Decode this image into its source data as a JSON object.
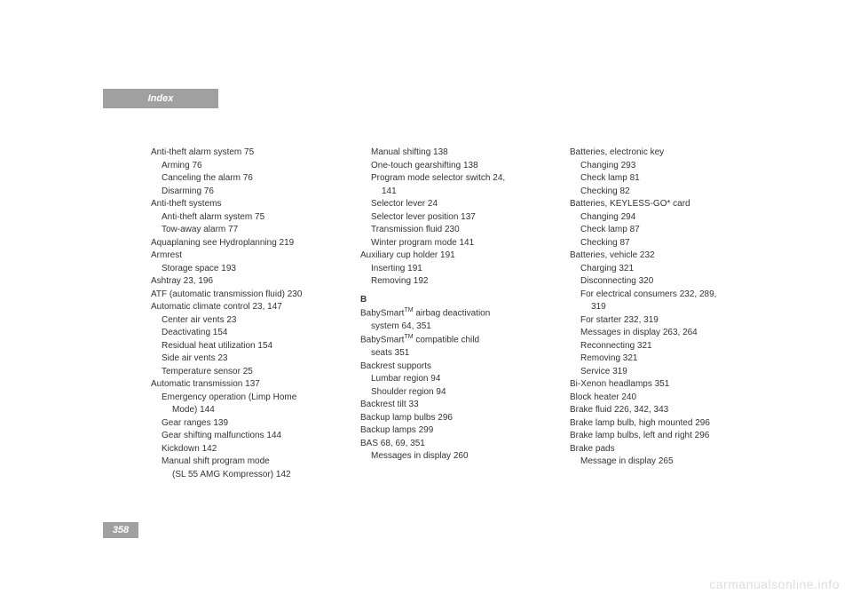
{
  "header": {
    "tab": "Index"
  },
  "page_number": "358",
  "watermark": "carmanualsonline.info",
  "col1": [
    {
      "t": "Anti-theft alarm system   75",
      "i": 0
    },
    {
      "t": "Arming   76",
      "i": 1
    },
    {
      "t": "Canceling the alarm   76",
      "i": 1
    },
    {
      "t": "Disarming   76",
      "i": 1
    },
    {
      "t": "Anti-theft systems",
      "i": 0
    },
    {
      "t": "Anti-theft alarm system   75",
      "i": 1
    },
    {
      "t": "Tow-away alarm   77",
      "i": 1
    },
    {
      "t": "Aquaplaning see Hydroplanning   219",
      "i": 0
    },
    {
      "t": "Armrest",
      "i": 0
    },
    {
      "t": "Storage space   193",
      "i": 1
    },
    {
      "t": "Ashtray   23, 196",
      "i": 0
    },
    {
      "t": "ATF (automatic transmission fluid)   230",
      "i": 0
    },
    {
      "t": "Automatic climate control   23, 147",
      "i": 0
    },
    {
      "t": "Center air vents   23",
      "i": 1
    },
    {
      "t": "Deactivating   154",
      "i": 1
    },
    {
      "t": "Residual heat utilization   154",
      "i": 1
    },
    {
      "t": "Side air vents   23",
      "i": 1
    },
    {
      "t": "Temperature sensor   25",
      "i": 1
    },
    {
      "t": "Automatic transmission   137",
      "i": 0
    },
    {
      "t": "Emergency operation (Limp Home",
      "i": 1
    },
    {
      "t": "Mode)   144",
      "i": 2
    },
    {
      "t": "Gear ranges   139",
      "i": 1
    },
    {
      "t": "Gear shifting malfunctions   144",
      "i": 1
    },
    {
      "t": "Kickdown   142",
      "i": 1
    },
    {
      "t": "Manual shift program mode",
      "i": 1
    },
    {
      "t": "(SL 55 AMG Kompressor)   142",
      "i": 2
    }
  ],
  "col2_top": [
    {
      "t": "Manual shifting   138",
      "i": 1
    },
    {
      "t": "One-touch gearshifting   138",
      "i": 1
    },
    {
      "t": "Program mode selector switch   24,",
      "i": 1
    },
    {
      "t": "141",
      "i": 2
    },
    {
      "t": "Selector lever   24",
      "i": 1
    },
    {
      "t": "Selector lever position   137",
      "i": 1
    },
    {
      "t": "Transmission fluid   230",
      "i": 1
    },
    {
      "t": "Winter program mode   141",
      "i": 1
    },
    {
      "t": "Auxiliary cup holder   191",
      "i": 0
    },
    {
      "t": "Inserting   191",
      "i": 1
    },
    {
      "t": "Removing   192",
      "i": 1
    }
  ],
  "col2_section_label": "B",
  "col2_b1": {
    "pre": "BabySmart",
    "sup": "TM",
    "post": " airbag deactivation"
  },
  "col2_b1b": "system   64, 351",
  "col2_b2": {
    "pre": "BabySmart",
    "sup": "TM",
    "post": " compatible child"
  },
  "col2_b2b": "seats   351",
  "col2_rest": [
    {
      "t": "Backrest supports",
      "i": 0
    },
    {
      "t": "Lumbar region   94",
      "i": 1
    },
    {
      "t": "Shoulder region   94",
      "i": 1
    },
    {
      "t": "Backrest tilt   33",
      "i": 0
    },
    {
      "t": "Backup lamp bulbs   296",
      "i": 0
    },
    {
      "t": "Backup lamps   299",
      "i": 0
    },
    {
      "t": "BAS   68, 69, 351",
      "i": 0
    },
    {
      "t": "Messages in display   260",
      "i": 1
    }
  ],
  "col3": [
    {
      "t": "Batteries, electronic key",
      "i": 0
    },
    {
      "t": "Changing   293",
      "i": 1
    },
    {
      "t": "Check lamp   81",
      "i": 1
    },
    {
      "t": "Checking   82",
      "i": 1
    },
    {
      "t": "Batteries, KEYLESS-GO* card",
      "i": 0
    },
    {
      "t": "Changing   294",
      "i": 1
    },
    {
      "t": "Check lamp   87",
      "i": 1
    },
    {
      "t": "Checking   87",
      "i": 1
    },
    {
      "t": "Batteries, vehicle   232",
      "i": 0
    },
    {
      "t": "Charging   321",
      "i": 1
    },
    {
      "t": "Disconnecting   320",
      "i": 1
    },
    {
      "t": "For electrical consumers   232, 289,",
      "i": 1
    },
    {
      "t": "319",
      "i": 2
    },
    {
      "t": "For starter   232, 319",
      "i": 1
    },
    {
      "t": "Messages in display   263, 264",
      "i": 1
    },
    {
      "t": "Reconnecting   321",
      "i": 1
    },
    {
      "t": "Removing   321",
      "i": 1
    },
    {
      "t": "Service   319",
      "i": 1
    },
    {
      "t": "Bi-Xenon headlamps   351",
      "i": 0
    },
    {
      "t": "Block heater   240",
      "i": 0
    },
    {
      "t": "Brake fluid   226, 342, 343",
      "i": 0
    },
    {
      "t": "Brake lamp bulb, high mounted   296",
      "i": 0
    },
    {
      "t": "Brake lamp bulbs, left and right   296",
      "i": 0
    },
    {
      "t": "Brake pads",
      "i": 0
    },
    {
      "t": "Message in display   265",
      "i": 1
    }
  ]
}
